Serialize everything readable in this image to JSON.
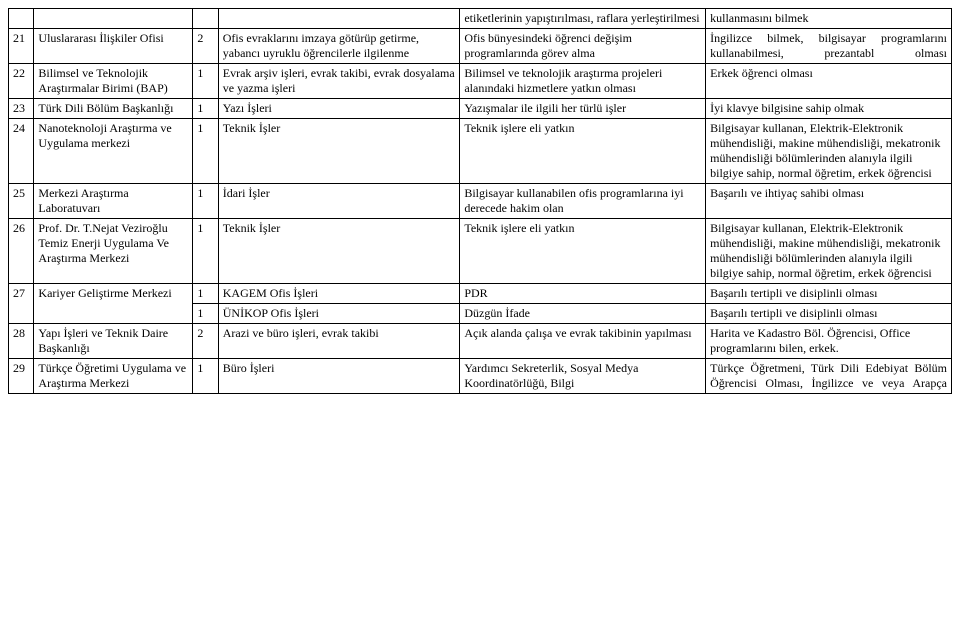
{
  "rows": [
    {
      "num": "",
      "unit": "",
      "qty": "",
      "task": "",
      "desc": "etiketlerinin yapıştırılması, raflara yerleştirilmesi",
      "req": "kullanmasını bilmek"
    },
    {
      "num": "21",
      "unit": "Uluslararası İlişkiler Ofisi",
      "qty": "2",
      "task": "Ofis evraklarını imzaya götürüp getirme, yabancı uyruklu öğrencilerle ilgilenme",
      "desc": "Ofis bünyesindeki öğrenci değişim programlarında görev alma",
      "req": "İngilizce bilmek, bilgisayar programlarını kullanabilmesi, prezantabl olması"
    },
    {
      "num": "22",
      "unit": "Bilimsel ve Teknolojik Araştırmalar Birimi (BAP)",
      "qty": "1",
      "task": "Evrak arşiv işleri, evrak takibi, evrak dosyalama ve yazma işleri",
      "desc": "Bilimsel ve teknolojik araştırma projeleri alanındaki hizmetlere yatkın olması",
      "req": "Erkek öğrenci olması"
    },
    {
      "num": "23",
      "unit": "Türk Dili Bölüm Başkanlığı",
      "qty": "1",
      "task": "Yazı İşleri",
      "desc": "Yazışmalar ile ilgili her türlü işler",
      "req": "İyi klavye bilgisine sahip olmak"
    },
    {
      "num": "24",
      "unit": "Nanoteknoloji Araştırma ve Uygulama merkezi",
      "qty": "1",
      "task": "Teknik İşler",
      "desc": "Teknik işlere eli yatkın",
      "req": "Bilgisayar kullanan, Elektrik-Elektronik mühendisliği, makine mühendisliği, mekatronik mühendisliği bölümlerinden alanıyla ilgili bilgiye sahip, normal öğretim, erkek öğrencisi"
    },
    {
      "num": "25",
      "unit": "Merkezi Araştırma Laboratuvarı",
      "qty": "1",
      "task": "İdari İşler",
      "desc": "Bilgisayar kullanabilen ofis programlarına iyi derecede hakim olan",
      "req": "Başarılı ve ihtiyaç sahibi olması"
    },
    {
      "num": "26",
      "unit": "Prof. Dr. T.Nejat Veziroğlu Temiz Enerji Uygulama Ve Araştırma Merkezi",
      "qty": "1",
      "task": "Teknik İşler",
      "desc": "Teknik işlere eli yatkın",
      "req": "Bilgisayar kullanan, Elektrik-Elektronik mühendisliği, makine mühendisliği, mekatronik mühendisliği bölümlerinden alanıyla ilgili bilgiye sahip, normal öğretim, erkek öğrencisi"
    },
    {
      "num": "27",
      "unit": "Kariyer Geliştirme Merkezi",
      "qty": "1",
      "task": "KAGEM Ofis İşleri",
      "desc": "PDR",
      "req": "Başarılı tertipli ve disiplinli olması"
    },
    {
      "num": "",
      "unit": "",
      "qty": "1",
      "task": "ÜNİKOP Ofis İşleri",
      "desc": "Düzgün İfade",
      "req": "Başarılı tertipli ve disiplinli olması"
    },
    {
      "num": "28",
      "unit": "Yapı İşleri ve Teknik Daire Başkanlığı",
      "qty": "2",
      "task": "Arazi ve büro işleri, evrak takibi",
      "desc": "Açık alanda çalışa ve evrak takibinin yapılması",
      "req": "Harita ve Kadastro Böl. Öğrencisi, Office programlarını bilen, erkek."
    },
    {
      "num": "29",
      "unit": "Türkçe Öğretimi Uygulama ve Araştırma Merkezi",
      "qty": "1",
      "task": "Büro İşleri",
      "desc": "Yardımcı Sekreterlik, Sosyal Medya Koordinatörlüğü, Bilgi",
      "req": "Türkçe Öğretmeni, Türk Dili Edebiyat Bölüm Öğrencisi Olması, İngilizce ve veya Arapça"
    }
  ],
  "row27_rowspan": 2,
  "justify_row_indices": [
    1,
    10
  ]
}
